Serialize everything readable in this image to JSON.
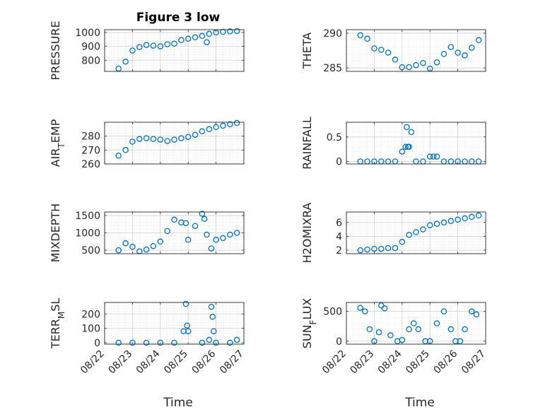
{
  "title": "Figure 3 low",
  "xlabel": "Time",
  "date_ticks": [
    "08/22",
    "08/23",
    "08/24",
    "08/25",
    "08/26",
    "08/27"
  ],
  "marker_color": "#0072BD",
  "chart_data": [
    {
      "type": "scatter",
      "marker": "open-circle",
      "grid": true,
      "ylabel": "PRESSURE",
      "ylabel_parts": [
        {
          "t": "PRESSURE"
        }
      ],
      "xlim": [
        "08/22",
        "08/27"
      ],
      "ylim": [
        720,
        1020
      ],
      "yticks": [
        800,
        900,
        1000
      ],
      "ytick_labels": [
        "800",
        "900",
        "1000"
      ],
      "x": [
        "08/22 12:00",
        "08/22 18:00",
        "08/23 00:00",
        "08/23 06:00",
        "08/23 12:00",
        "08/23 18:00",
        "08/24 00:00",
        "08/24 06:00",
        "08/24 12:00",
        "08/24 18:00",
        "08/25 00:00",
        "08/25 06:00",
        "08/25 12:00",
        "08/25 16:00",
        "08/25 18:00",
        "08/26 00:00",
        "08/26 06:00",
        "08/26 12:00",
        "08/26 18:00"
      ],
      "y": [
        740,
        790,
        870,
        895,
        910,
        905,
        900,
        915,
        920,
        945,
        955,
        965,
        975,
        930,
        990,
        1000,
        1005,
        1008,
        1010
      ]
    },
    {
      "type": "scatter",
      "marker": "open-circle",
      "grid": true,
      "ylabel": "THETA",
      "ylabel_parts": [
        {
          "t": "THETA"
        }
      ],
      "xlim": [
        "08/22",
        "08/27"
      ],
      "ylim": [
        284.5,
        290.5
      ],
      "yticks": [
        285,
        290
      ],
      "ytick_labels": [
        "285",
        "290"
      ],
      "x": [
        "08/22 12:00",
        "08/22 18:00",
        "08/23 00:00",
        "08/23 06:00",
        "08/23 12:00",
        "08/23 18:00",
        "08/24 00:00",
        "08/24 06:00",
        "08/24 12:00",
        "08/24 18:00",
        "08/25 00:00",
        "08/25 06:00",
        "08/25 12:00",
        "08/25 18:00",
        "08/26 00:00",
        "08/26 06:00",
        "08/26 12:00",
        "08/26 18:00"
      ],
      "y": [
        289.7,
        289.2,
        287.8,
        287.6,
        287.2,
        286.2,
        285.1,
        285.1,
        285.4,
        285.7,
        284.9,
        285.8,
        287.0,
        288.0,
        287.2,
        286.8,
        287.9,
        289.0
      ]
    },
    {
      "type": "scatter",
      "marker": "open-circle",
      "grid": true,
      "ylabel": "AIR_TEMP",
      "ylabel_parts": [
        {
          "t": "AIR"
        },
        {
          "t": "T",
          "sub": true
        },
        {
          "t": "EMP"
        }
      ],
      "xlim": [
        "08/22",
        "08/27"
      ],
      "ylim": [
        260,
        290
      ],
      "yticks": [
        260,
        270,
        280
      ],
      "ytick_labels": [
        "260",
        "270",
        "280"
      ],
      "x": [
        "08/22 12:00",
        "08/22 18:00",
        "08/23 00:00",
        "08/23 06:00",
        "08/23 12:00",
        "08/23 18:00",
        "08/24 00:00",
        "08/24 06:00",
        "08/24 12:00",
        "08/24 18:00",
        "08/25 00:00",
        "08/25 06:00",
        "08/25 12:00",
        "08/25 18:00",
        "08/26 00:00",
        "08/26 06:00",
        "08/26 12:00",
        "08/26 18:00"
      ],
      "y": [
        266,
        270,
        276,
        278,
        278.5,
        278,
        277.5,
        276.5,
        277.5,
        278.5,
        279.5,
        281,
        283.5,
        285,
        286.5,
        287.5,
        288.5,
        289.5
      ]
    },
    {
      "type": "scatter",
      "marker": "open-circle",
      "grid": true,
      "ylabel": "RAINFALL",
      "ylabel_parts": [
        {
          "t": "RAINFALL"
        }
      ],
      "xlim": [
        "08/22",
        "08/27"
      ],
      "ylim": [
        -0.05,
        0.8
      ],
      "yticks": [
        0,
        0.5
      ],
      "ytick_labels": [
        "0",
        "0.5"
      ],
      "x": [
        "08/22 12:00",
        "08/22 18:00",
        "08/23 00:00",
        "08/23 06:00",
        "08/23 12:00",
        "08/23 18:00",
        "08/24 00:00",
        "08/24 03:00",
        "08/24 04:00",
        "08/24 05:00",
        "08/24 06:00",
        "08/24 08:00",
        "08/24 12:00",
        "08/24 18:00",
        "08/25 00:00",
        "08/25 03:00",
        "08/25 06:00",
        "08/25 12:00",
        "08/25 18:00",
        "08/26 00:00",
        "08/26 06:00",
        "08/26 12:00",
        "08/26 18:00"
      ],
      "y": [
        0,
        0,
        0,
        0,
        0,
        0,
        0.2,
        0.3,
        0.7,
        0.3,
        0.3,
        0.6,
        0,
        0,
        0.1,
        0.1,
        0.1,
        0,
        0,
        0,
        0,
        0,
        0
      ]
    },
    {
      "type": "scatter",
      "marker": "open-circle",
      "grid": true,
      "ylabel": "MIXDEPTH",
      "ylabel_parts": [
        {
          "t": "MIXDEPTH"
        }
      ],
      "xlim": [
        "08/22",
        "08/27"
      ],
      "ylim": [
        400,
        1600
      ],
      "yticks": [
        500,
        1000,
        1500
      ],
      "ytick_labels": [
        "500",
        "1000",
        "1500"
      ],
      "x": [
        "08/22 12:00",
        "08/22 18:00",
        "08/23 00:00",
        "08/23 06:00",
        "08/23 12:00",
        "08/23 18:00",
        "08/24 00:00",
        "08/24 06:00",
        "08/24 12:00",
        "08/24 18:00",
        "08/24 22:00",
        "08/25 00:00",
        "08/25 06:00",
        "08/25 12:00",
        "08/25 14:00",
        "08/25 16:00",
        "08/25 20:00",
        "08/26 00:00",
        "08/26 06:00",
        "08/26 12:00",
        "08/26 18:00"
      ],
      "y": [
        500,
        700,
        600,
        470,
        520,
        620,
        750,
        1050,
        1380,
        1300,
        1280,
        800,
        1200,
        1550,
        1400,
        950,
        550,
        800,
        850,
        950,
        1000
      ]
    },
    {
      "type": "scatter",
      "marker": "open-circle",
      "grid": true,
      "ylabel": "H2OMIXRA",
      "ylabel_parts": [
        {
          "t": "H2OMIXRA"
        }
      ],
      "xlim": [
        "08/22",
        "08/27"
      ],
      "ylim": [
        1.5,
        7.5
      ],
      "yticks": [
        2,
        4,
        6
      ],
      "ytick_labels": [
        "2",
        "4",
        "6"
      ],
      "x": [
        "08/22 12:00",
        "08/22 18:00",
        "08/23 00:00",
        "08/23 06:00",
        "08/23 12:00",
        "08/23 18:00",
        "08/24 00:00",
        "08/24 06:00",
        "08/24 12:00",
        "08/24 18:00",
        "08/25 00:00",
        "08/25 06:00",
        "08/25 12:00",
        "08/25 18:00",
        "08/26 00:00",
        "08/26 06:00",
        "08/26 12:00",
        "08/26 18:00"
      ],
      "y": [
        2.0,
        2.1,
        2.2,
        2.2,
        2.3,
        2.3,
        3.2,
        4.2,
        4.6,
        5.0,
        5.6,
        5.8,
        6.0,
        6.2,
        6.4,
        6.6,
        6.8,
        7.0
      ]
    },
    {
      "type": "scatter",
      "marker": "open-circle",
      "grid": true,
      "ylabel": "TERR_MSL",
      "ylabel_parts": [
        {
          "t": "TERR"
        },
        {
          "t": "M",
          "sub": true
        },
        {
          "t": "SL"
        }
      ],
      "xlim": [
        "08/22",
        "08/27"
      ],
      "ylim": [
        -10,
        280
      ],
      "yticks": [
        0,
        100,
        200
      ],
      "ytick_labels": [
        "0",
        "100",
        "200"
      ],
      "x": [
        "08/22 12:00",
        "08/23 00:00",
        "08/23 12:00",
        "08/24 00:00",
        "08/24 12:00",
        "08/24 20:00",
        "08/24 22:00",
        "08/24 23:00",
        "08/25 00:00",
        "08/25 12:00",
        "08/25 18:00",
        "08/25 20:00",
        "08/25 21:00",
        "08/25 22:00",
        "08/26 00:00",
        "08/26 12:00",
        "08/26 18:00"
      ],
      "y": [
        0,
        0,
        0,
        0,
        0,
        80,
        270,
        120,
        80,
        0,
        20,
        250,
        180,
        80,
        0,
        0,
        20
      ]
    },
    {
      "type": "scatter",
      "marker": "open-circle",
      "grid": true,
      "ylabel": "SUN_FLUX",
      "ylabel_parts": [
        {
          "t": "SUN"
        },
        {
          "t": "F",
          "sub": true
        },
        {
          "t": "LUX"
        }
      ],
      "xlim": [
        "08/22",
        "08/27"
      ],
      "ylim": [
        -50,
        650
      ],
      "yticks": [
        0,
        500
      ],
      "ytick_labels": [
        "0",
        "500"
      ],
      "x": [
        "08/22 12:00",
        "08/22 16:00",
        "08/22 20:00",
        "08/23 00:00",
        "08/23 04:00",
        "08/23 06:00",
        "08/23 09:00",
        "08/23 14:00",
        "08/23 20:00",
        "08/24 00:00",
        "08/24 06:00",
        "08/24 10:00",
        "08/24 14:00",
        "08/24 20:00",
        "08/25 00:00",
        "08/25 06:00",
        "08/25 12:00",
        "08/25 18:00",
        "08/25 22:00",
        "08/26 02:00",
        "08/26 06:00",
        "08/26 12:00",
        "08/26 16:00"
      ],
      "y": [
        560,
        500,
        200,
        0,
        150,
        600,
        550,
        100,
        0,
        20,
        200,
        300,
        200,
        0,
        0,
        300,
        500,
        200,
        0,
        0,
        200,
        500,
        450
      ]
    }
  ]
}
